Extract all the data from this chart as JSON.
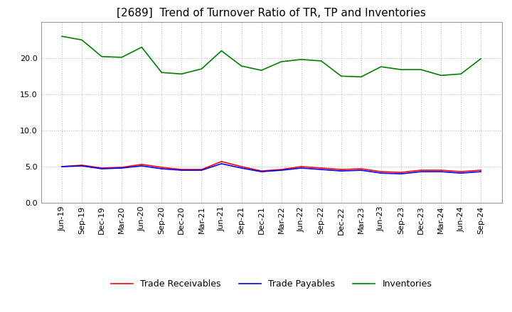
{
  "title": "[2689]  Trend of Turnover Ratio of TR, TP and Inventories",
  "xlabel": "",
  "ylabel": "",
  "ylim": [
    0.0,
    25.0
  ],
  "yticks": [
    0.0,
    5.0,
    10.0,
    15.0,
    20.0
  ],
  "categories": [
    "Jun-19",
    "Sep-19",
    "Dec-19",
    "Mar-20",
    "Jun-20",
    "Sep-20",
    "Dec-20",
    "Mar-21",
    "Jun-21",
    "Sep-21",
    "Dec-21",
    "Mar-22",
    "Jun-22",
    "Sep-22",
    "Dec-22",
    "Mar-23",
    "Jun-23",
    "Sep-23",
    "Dec-23",
    "Mar-24",
    "Jun-24",
    "Sep-24"
  ],
  "trade_receivables": [
    5.0,
    5.2,
    4.8,
    4.9,
    5.3,
    4.9,
    4.6,
    4.6,
    5.7,
    5.0,
    4.4,
    4.6,
    5.0,
    4.8,
    4.6,
    4.7,
    4.3,
    4.2,
    4.5,
    4.5,
    4.3,
    4.5
  ],
  "trade_payables": [
    5.0,
    5.1,
    4.7,
    4.8,
    5.1,
    4.7,
    4.5,
    4.5,
    5.4,
    4.8,
    4.3,
    4.5,
    4.8,
    4.6,
    4.4,
    4.5,
    4.1,
    4.0,
    4.3,
    4.3,
    4.1,
    4.3
  ],
  "inventories": [
    23.0,
    22.5,
    20.2,
    20.1,
    21.5,
    18.0,
    17.8,
    18.5,
    21.0,
    18.9,
    18.3,
    19.5,
    19.8,
    19.6,
    17.5,
    17.4,
    18.8,
    18.4,
    18.4,
    17.6,
    17.8,
    19.9
  ],
  "tr_color": "#ff0000",
  "tp_color": "#0000ff",
  "inv_color": "#008000",
  "tr_label": "Trade Receivables",
  "tp_label": "Trade Payables",
  "inv_label": "Inventories",
  "bg_color": "#ffffff",
  "grid_color": "#bbbbbb",
  "title_fontsize": 11,
  "axis_fontsize": 8,
  "legend_fontsize": 9
}
